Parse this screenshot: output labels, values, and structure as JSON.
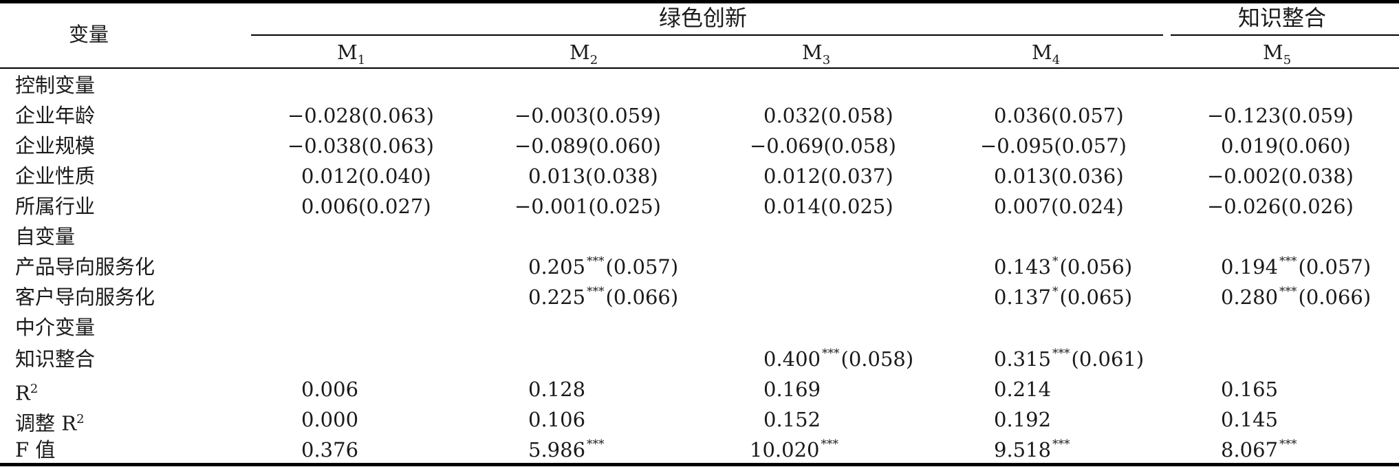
{
  "header": {
    "var_label": "变量",
    "group1": "绿色创新",
    "group2": "知识整合",
    "models": [
      {
        "label": "M",
        "sub": "1"
      },
      {
        "label": "M",
        "sub": "2"
      },
      {
        "label": "M",
        "sub": "3"
      },
      {
        "label": "M",
        "sub": "4"
      },
      {
        "label": "M",
        "sub": "5"
      }
    ]
  },
  "rows": [
    {
      "label": "控制变量",
      "cells": [
        "",
        "",
        "",
        "",
        ""
      ]
    },
    {
      "label": "企业年龄",
      "cells": [
        {
          "val": "−0.028",
          "stars": "",
          "se": "(0.063)"
        },
        {
          "val": "−0.003",
          "stars": "",
          "se": "(0.059)"
        },
        {
          "val": "0.032",
          "stars": "",
          "se": "(0.058)"
        },
        {
          "val": "0.036",
          "stars": "",
          "se": "(0.057)"
        },
        {
          "val": "−0.123",
          "stars": "",
          "se": "(0.059)"
        }
      ]
    },
    {
      "label": "企业规模",
      "cells": [
        {
          "val": "−0.038",
          "stars": "",
          "se": "(0.063)"
        },
        {
          "val": "−0.089",
          "stars": "",
          "se": "(0.060)"
        },
        {
          "val": "−0.069",
          "stars": "",
          "se": "(0.058)"
        },
        {
          "val": "−0.095",
          "stars": "",
          "se": "(0.057)"
        },
        {
          "val": "0.019",
          "stars": "",
          "se": "(0.060)"
        }
      ]
    },
    {
      "label": "企业性质",
      "cells": [
        {
          "val": "0.012",
          "stars": "",
          "se": "(0.040)"
        },
        {
          "val": "0.013",
          "stars": "",
          "se": "(0.038)"
        },
        {
          "val": "0.012",
          "stars": "",
          "se": "(0.037)"
        },
        {
          "val": "0.013",
          "stars": "",
          "se": "(0.036)"
        },
        {
          "val": "−0.002",
          "stars": "",
          "se": "(0.038)"
        }
      ]
    },
    {
      "label": "所属行业",
      "cells": [
        {
          "val": "0.006",
          "stars": "",
          "se": "(0.027)"
        },
        {
          "val": "−0.001",
          "stars": "",
          "se": "(0.025)"
        },
        {
          "val": "0.014",
          "stars": "",
          "se": "(0.025)"
        },
        {
          "val": "0.007",
          "stars": "",
          "se": "(0.024)"
        },
        {
          "val": "−0.026",
          "stars": "",
          "se": "(0.026)"
        }
      ]
    },
    {
      "label": "自变量",
      "cells": [
        "",
        "",
        "",
        "",
        ""
      ]
    },
    {
      "label": "产品导向服务化",
      "cells": [
        "",
        {
          "val": "0.205",
          "stars": "***",
          "se": "(0.057)"
        },
        "",
        {
          "val": "0.143",
          "stars": "*",
          "se": "(0.056)"
        },
        {
          "val": "0.194",
          "stars": "***",
          "se": "(0.057)"
        }
      ]
    },
    {
      "label": "客户导向服务化",
      "cells": [
        "",
        {
          "val": "0.225",
          "stars": "***",
          "se": "(0.066)"
        },
        "",
        {
          "val": "0.137",
          "stars": "*",
          "se": "(0.065)"
        },
        {
          "val": "0.280",
          "stars": "***",
          "se": "(0.066)"
        }
      ]
    },
    {
      "label": "中介变量",
      "cells": [
        "",
        "",
        "",
        "",
        ""
      ]
    },
    {
      "label": "知识整合",
      "cells": [
        "",
        "",
        {
          "val": "0.400",
          "stars": "***",
          "se": "(0.058)"
        },
        {
          "val": "0.315",
          "stars": "***",
          "se": "(0.061)"
        },
        ""
      ]
    },
    {
      "label": "R",
      "label_sup": "2",
      "cells": [
        {
          "val": "0.006",
          "stars": "",
          "se": ""
        },
        {
          "val": "0.128",
          "stars": "",
          "se": ""
        },
        {
          "val": "0.169",
          "stars": "",
          "se": ""
        },
        {
          "val": "0.214",
          "stars": "",
          "se": ""
        },
        {
          "val": "0.165",
          "stars": "",
          "se": ""
        }
      ]
    },
    {
      "label": "调整 R",
      "label_sup": "2",
      "cells": [
        {
          "val": "0.000",
          "stars": "",
          "se": ""
        },
        {
          "val": "0.106",
          "stars": "",
          "se": ""
        },
        {
          "val": "0.152",
          "stars": "",
          "se": ""
        },
        {
          "val": "0.192",
          "stars": "",
          "se": ""
        },
        {
          "val": "0.145",
          "stars": "",
          "se": ""
        }
      ]
    },
    {
      "label": "F 值",
      "cells": [
        {
          "val": "0.376",
          "stars": "",
          "se": ""
        },
        {
          "val": "5.986",
          "stars": "***",
          "se": ""
        },
        {
          "val": "10.020",
          "stars": "***",
          "se": ""
        },
        {
          "val": "9.518",
          "stars": "***",
          "se": ""
        },
        {
          "val": "8.067",
          "stars": "***",
          "se": ""
        }
      ]
    }
  ]
}
